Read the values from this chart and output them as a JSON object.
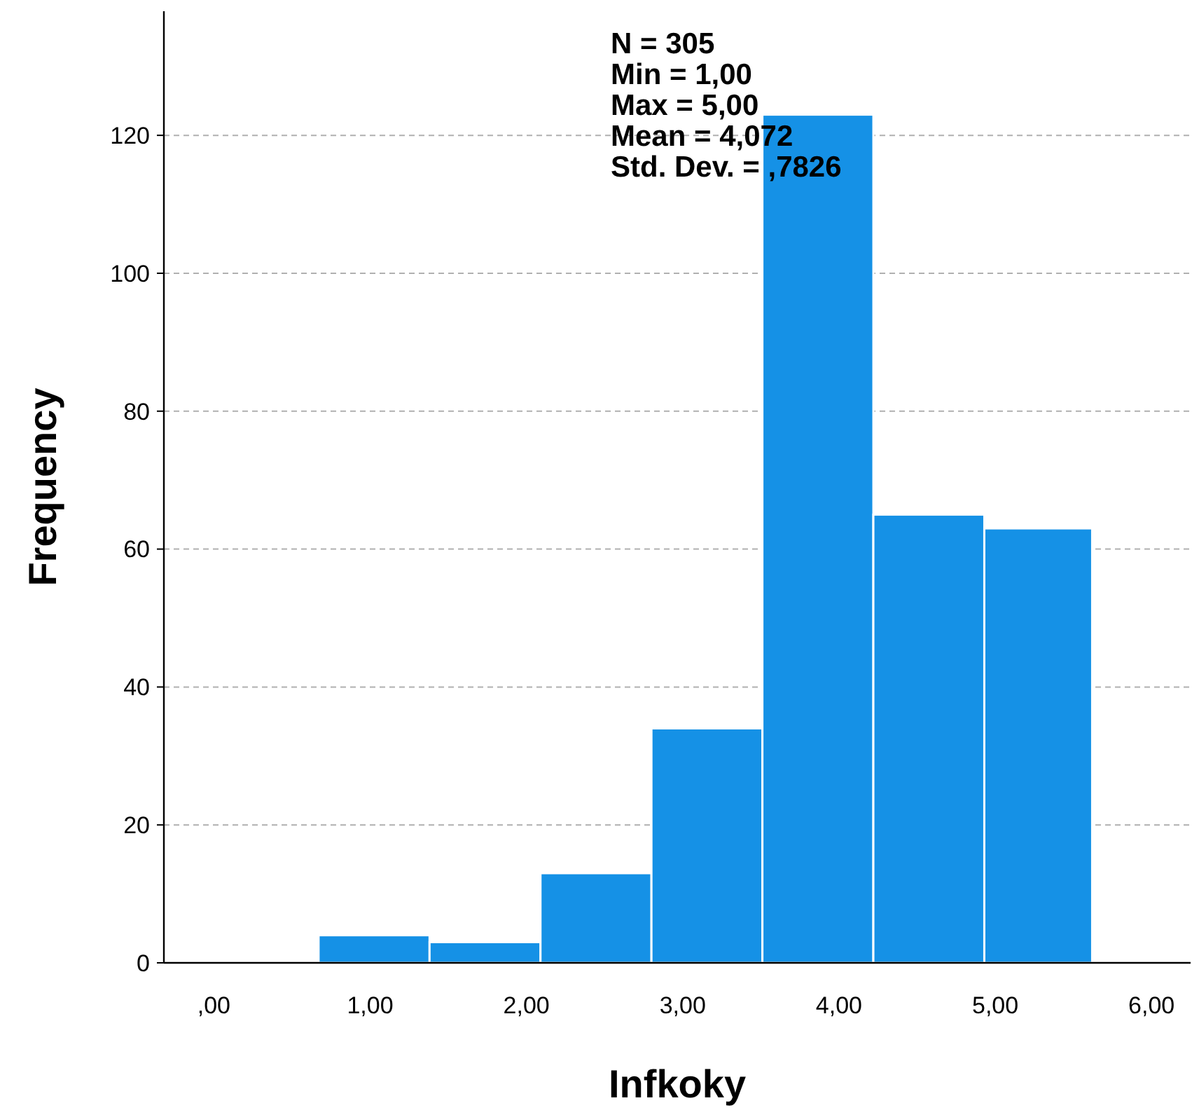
{
  "chart_data": {
    "type": "histogram",
    "xlabel": "Infkoky",
    "ylabel": "Frequency",
    "bins": [
      0.67,
      1.38,
      2.09,
      2.8,
      3.51,
      4.22,
      4.93,
      5.62
    ],
    "values": [
      4,
      3,
      13,
      34,
      123,
      65,
      63
    ],
    "color": "#1591e6",
    "xlim": [
      -0.32,
      6.25
    ],
    "xticks": [
      {
        "value": 0,
        "label": ",00"
      },
      {
        "value": 1,
        "label": "1,00"
      },
      {
        "value": 2,
        "label": "2,00"
      },
      {
        "value": 3,
        "label": "3,00"
      },
      {
        "value": 4,
        "label": "4,00"
      },
      {
        "value": 5,
        "label": "5,00"
      },
      {
        "value": 6,
        "label": "6,00"
      }
    ],
    "ylim": [
      0,
      138
    ],
    "yticks": [
      0,
      20,
      40,
      60,
      80,
      100,
      120
    ],
    "grid": "y",
    "annotations": [
      "N = 305",
      "Min = 1,00",
      "Max = 5,00",
      "Mean = 4,072",
      "Std. Dev. = ,7826"
    ]
  }
}
